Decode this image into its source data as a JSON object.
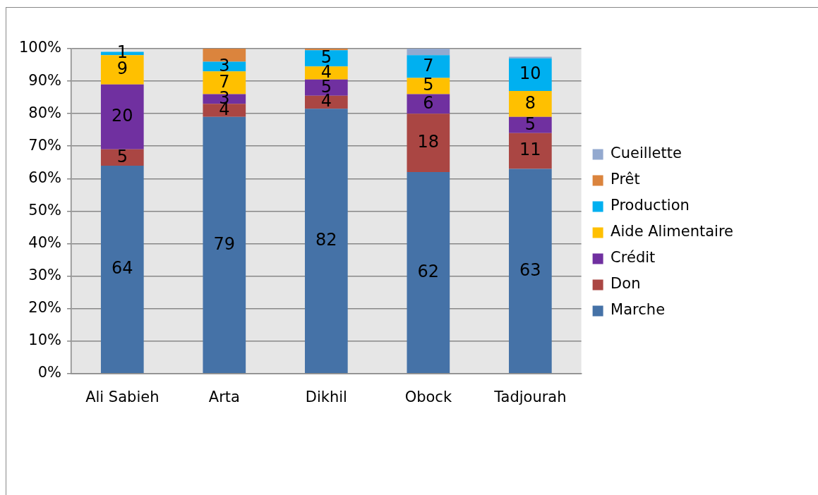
{
  "chart_data": {
    "type": "bar",
    "stacked": true,
    "categories": [
      "Ali Sabieh",
      "Arta",
      "Dikhil",
      "Obock",
      "Tadjourah"
    ],
    "ylim": [
      0,
      100
    ],
    "yticks": [
      {
        "value": 0,
        "label": "0%"
      },
      {
        "value": 10,
        "label": "10%"
      },
      {
        "value": 20,
        "label": "20%"
      },
      {
        "value": 30,
        "label": "30%"
      },
      {
        "value": 40,
        "label": "40%"
      },
      {
        "value": 50,
        "label": "50%"
      },
      {
        "value": 60,
        "label": "60%"
      },
      {
        "value": 70,
        "label": "70%"
      },
      {
        "value": 80,
        "label": "80%"
      },
      {
        "value": 90,
        "label": "90%"
      },
      {
        "value": 100,
        "label": "100%"
      }
    ],
    "grid": "y",
    "legend": "right",
    "series": [
      {
        "name": "Marche",
        "color": "#4572a7",
        "values": [
          64,
          79,
          81.5,
          62,
          63
        ],
        "value_labels": [
          "64",
          "79",
          "82",
          "62",
          "63"
        ]
      },
      {
        "name": "Don",
        "color": "#aa4643",
        "values": [
          5,
          4,
          4,
          18,
          11
        ],
        "value_labels": [
          "5",
          "4",
          "4",
          "18",
          "11"
        ]
      },
      {
        "name": "Crédit",
        "color": "#7030a0",
        "values": [
          20,
          3,
          5,
          6,
          5
        ],
        "value_labels": [
          "20",
          "3",
          "5",
          "6",
          "5"
        ]
      },
      {
        "name": "Aide Alimentaire",
        "color": "#ffc000",
        "values": [
          9,
          7,
          4,
          5,
          8
        ],
        "value_labels": [
          "9",
          "7",
          "4",
          "5",
          "8"
        ]
      },
      {
        "name": "Production",
        "color": "#00b0f0",
        "values": [
          1,
          3,
          5,
          7,
          10
        ],
        "value_labels": [
          "1",
          "3",
          "5",
          "7",
          "10"
        ]
      },
      {
        "name": "Prêt",
        "color": "#db843d",
        "values": [
          0,
          4,
          0.5,
          0,
          0
        ]
      },
      {
        "name": "Cueillette",
        "color": "#93a9cf",
        "values": [
          0,
          0,
          0,
          2,
          0.5
        ]
      }
    ]
  }
}
